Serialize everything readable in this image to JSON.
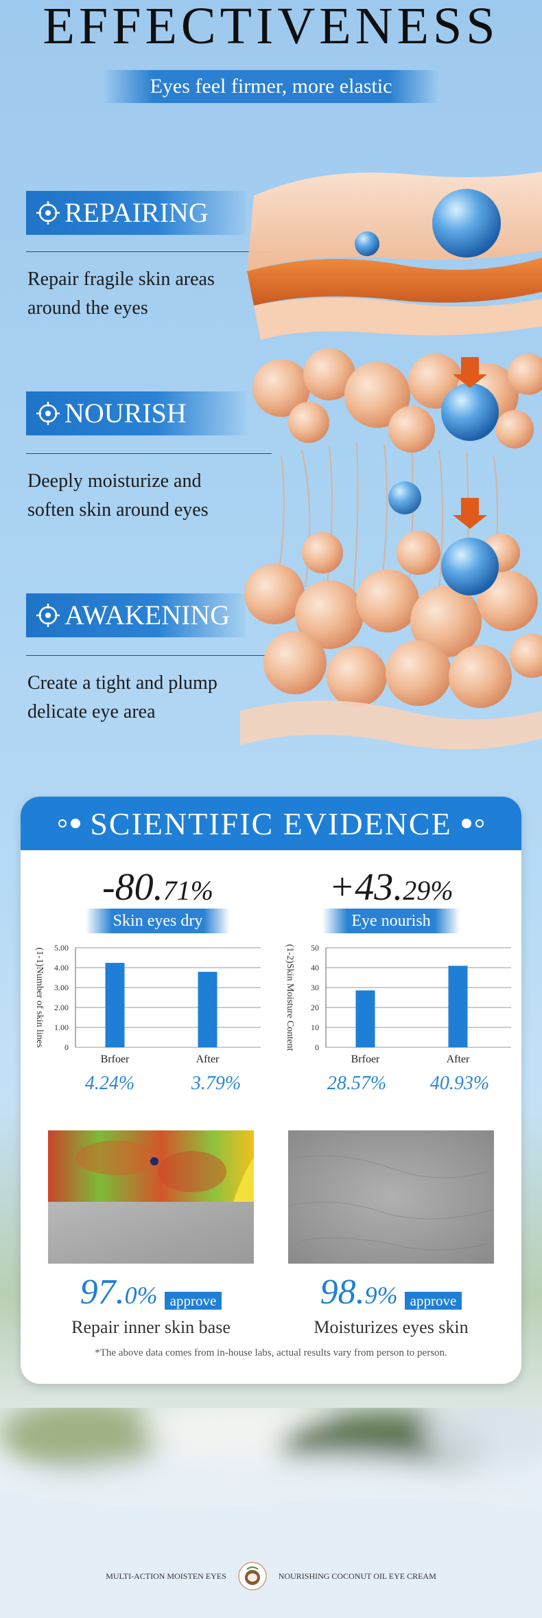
{
  "header": {
    "title": "EFFECTIVENESS",
    "subtitle": "Eyes feel firmer, more elastic"
  },
  "features": [
    {
      "title": "REPAIRING",
      "icon": "target-icon",
      "description_line1": "Repair fragile skin areas",
      "description_line2": "around the eyes"
    },
    {
      "title": "NOURISH",
      "icon": "target-icon",
      "description_line1": "Deeply moisturize and",
      "description_line2": "soften skin around eyes"
    },
    {
      "title": "AWAKENING",
      "icon": "target-icon",
      "description_line1": "Create a tight and plump",
      "description_line2": "delicate eye area"
    }
  ],
  "evidence": {
    "title": "SCIENTIFIC EVIDENCE",
    "stats": [
      {
        "value_main": "-80.",
        "value_decimal": "71%",
        "label": "Skin eyes dry"
      },
      {
        "value_main": "+43.",
        "value_decimal": "29%",
        "label": "Eye nourish"
      }
    ],
    "photos": [
      {
        "pct_main": "97.",
        "pct_decimal": "0%",
        "tag": "approve",
        "caption": "Repair inner skin base"
      },
      {
        "pct_main": "98.",
        "pct_decimal": "9%",
        "tag": "approve",
        "caption": "Moisturizes eyes skin"
      }
    ],
    "disclaimer": "*The above data comes from in-house labs, actual results vary from person to person."
  },
  "chart_data": [
    {
      "type": "bar",
      "ylabel": "(1-1)Number of skin lines",
      "categories": [
        "Brfoer",
        "After"
      ],
      "values": [
        4.24,
        3.79
      ],
      "value_labels": [
        "4.24%",
        "3.79%"
      ],
      "yticks": [
        "0",
        "1.00",
        "2.00",
        "3.00",
        "4.00",
        "5.00"
      ],
      "ylim": [
        0,
        5
      ],
      "grid": true,
      "color": "#1f7fd6"
    },
    {
      "type": "bar",
      "ylabel": "(1-2)Skin Moisture Content",
      "categories": [
        "Brfoer",
        "After"
      ],
      "values": [
        28.57,
        40.93
      ],
      "value_labels": [
        "28.57%",
        "40.93%"
      ],
      "yticks": [
        "0",
        "10",
        "20",
        "30",
        "40",
        "50"
      ],
      "ylim": [
        0,
        50
      ],
      "grid": true,
      "color": "#1f7fd6"
    }
  ],
  "footer": {
    "left_text": "MULTI-ACTION MOISTEN EYES",
    "right_text": "NOURISHING COCONUT OIL EYE CREAM",
    "logo_icon": "coconut-logo-icon"
  },
  "colors": {
    "accent": "#1f7fd6",
    "accent_light": "#2b82d4"
  }
}
